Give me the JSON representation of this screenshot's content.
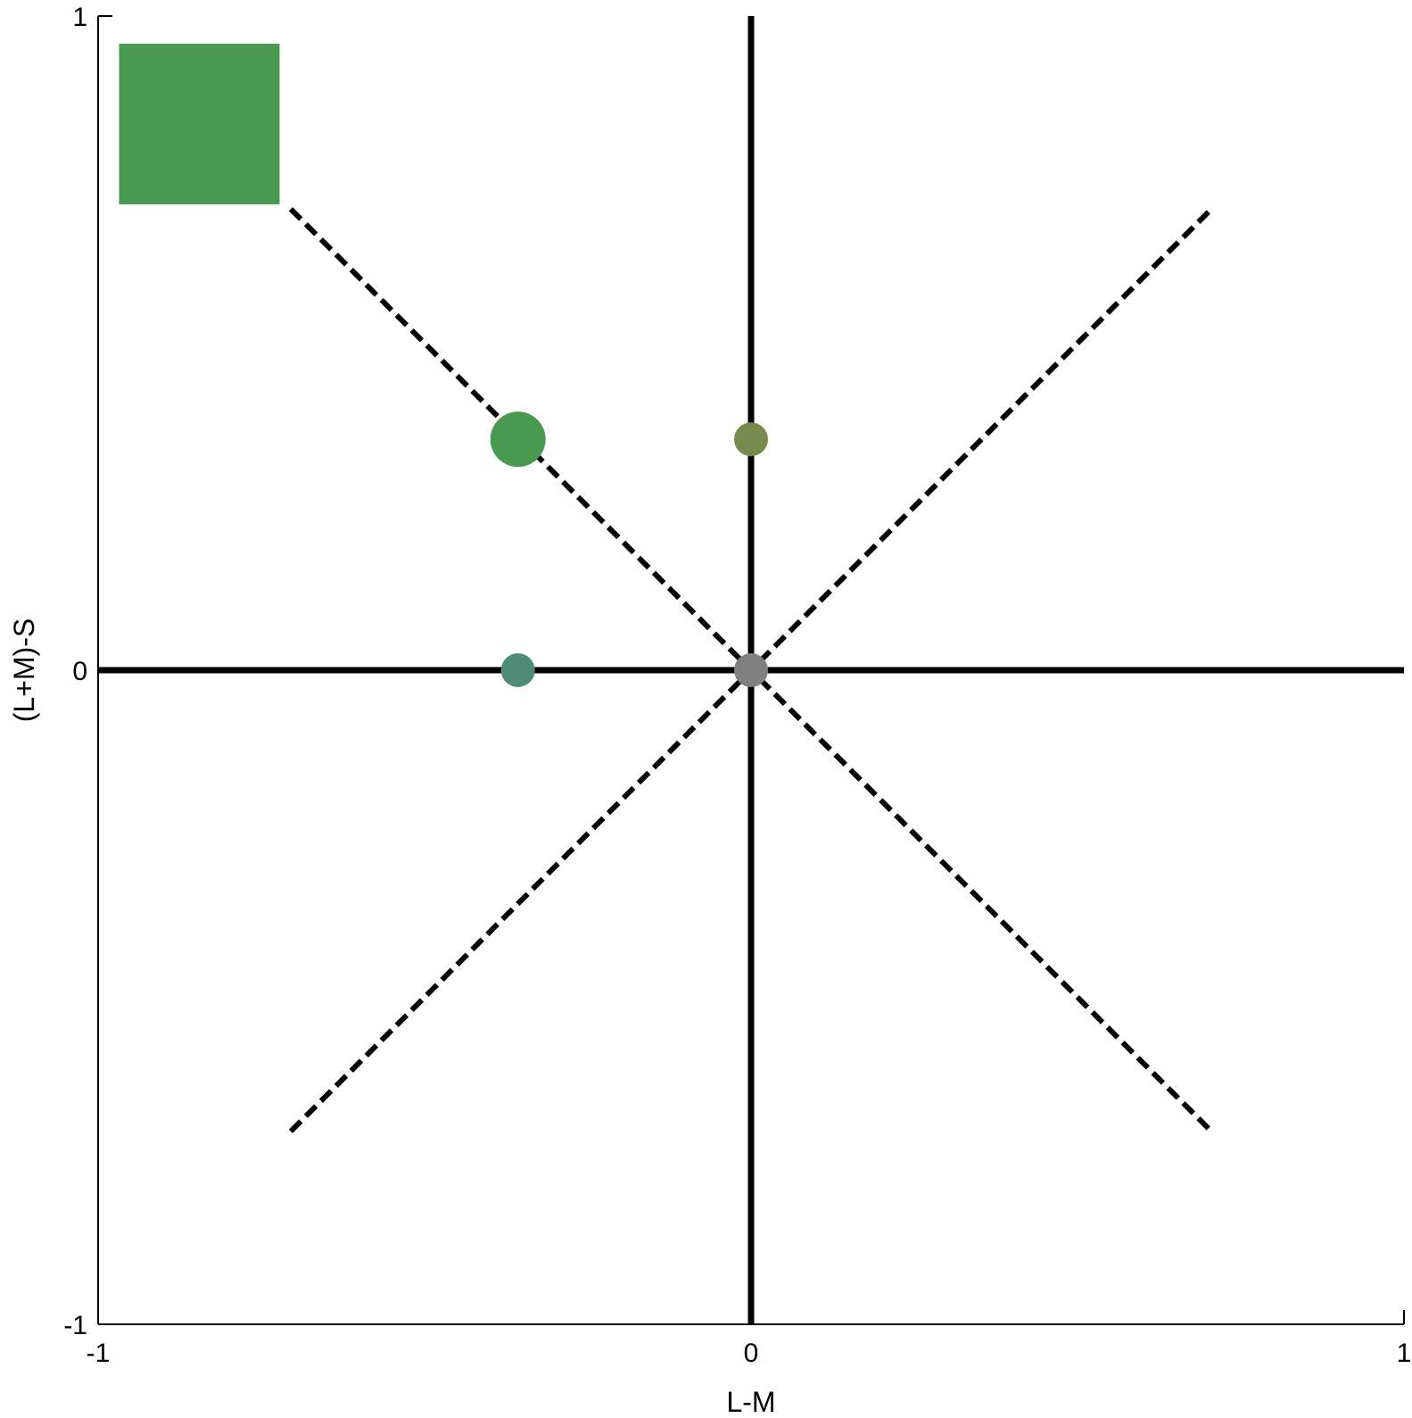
{
  "chart_data": {
    "type": "scatter",
    "title": "",
    "xlabel": "L-M",
    "ylabel": "(L+M)-S",
    "xlim": [
      -1,
      1
    ],
    "ylim": [
      -1,
      1
    ],
    "xticks": [
      {
        "value": -1,
        "label": "-1"
      },
      {
        "value": 0,
        "label": "0"
      },
      {
        "value": 1,
        "label": "1"
      }
    ],
    "yticks": [
      {
        "value": -1,
        "label": "-1"
      },
      {
        "value": 0,
        "label": "0"
      },
      {
        "value": 1,
        "label": "1"
      }
    ],
    "grid": false,
    "reference_lines": [
      {
        "name": "horizontal-axis-line",
        "style": "solid",
        "x": [
          -1,
          1
        ],
        "y": [
          0,
          0
        ]
      },
      {
        "name": "vertical-axis-line",
        "style": "solid",
        "x": [
          0,
          0
        ],
        "y": [
          -1,
          1
        ]
      },
      {
        "name": "diagonal-descending",
        "style": "dashed",
        "x": [
          -0.705,
          0.705
        ],
        "y": [
          0.705,
          -0.705
        ]
      },
      {
        "name": "diagonal-ascending",
        "style": "dashed",
        "x": [
          -0.705,
          0.705
        ],
        "y": [
          -0.705,
          0.705
        ]
      }
    ],
    "points": [
      {
        "x": -0.357,
        "y": 0.353,
        "color": "#4a9950",
        "shape": "circle",
        "size": "large"
      },
      {
        "x": 0.0,
        "y": 0.353,
        "color": "#7a8a4e",
        "shape": "circle",
        "size": "medium"
      },
      {
        "x": -0.357,
        "y": 0.0,
        "color": "#4e8c78",
        "shape": "circle",
        "size": "medium"
      },
      {
        "x": 0.0,
        "y": 0.0,
        "color": "#808080",
        "shape": "circle",
        "size": "medium"
      },
      {
        "x": -0.845,
        "y": 0.835,
        "color": "#4a9950",
        "shape": "square",
        "size": "xlarge"
      }
    ]
  }
}
